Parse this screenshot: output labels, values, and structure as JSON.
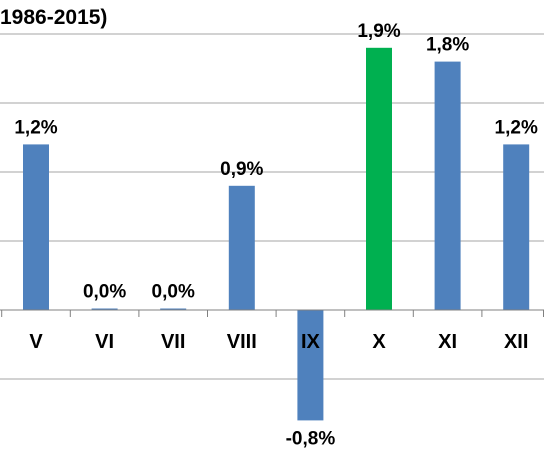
{
  "chart_data": {
    "type": "bar",
    "title": "1986-2015)",
    "categories": [
      "V",
      "VI",
      "VII",
      "VIII",
      "IX",
      "X",
      "XI",
      "XII"
    ],
    "values": [
      1.2,
      0.0,
      0.0,
      0.9,
      -0.8,
      1.9,
      1.8,
      1.2
    ],
    "value_labels": [
      "1,2%",
      "0,0%",
      "0,0%",
      "0,9%",
      "-0,8%",
      "1,9%",
      "1,8%",
      "1,2%"
    ],
    "highlight_index": 5,
    "ylim": [
      -1.0,
      2.0
    ],
    "y_gridlines": [
      -0.5,
      0.5,
      1.0,
      1.5,
      2.0
    ],
    "grid": true,
    "colors": {
      "default": "#4F81BD",
      "highlight": "#00B050",
      "grid": "#A6A6A6",
      "axis": "#808080"
    }
  }
}
